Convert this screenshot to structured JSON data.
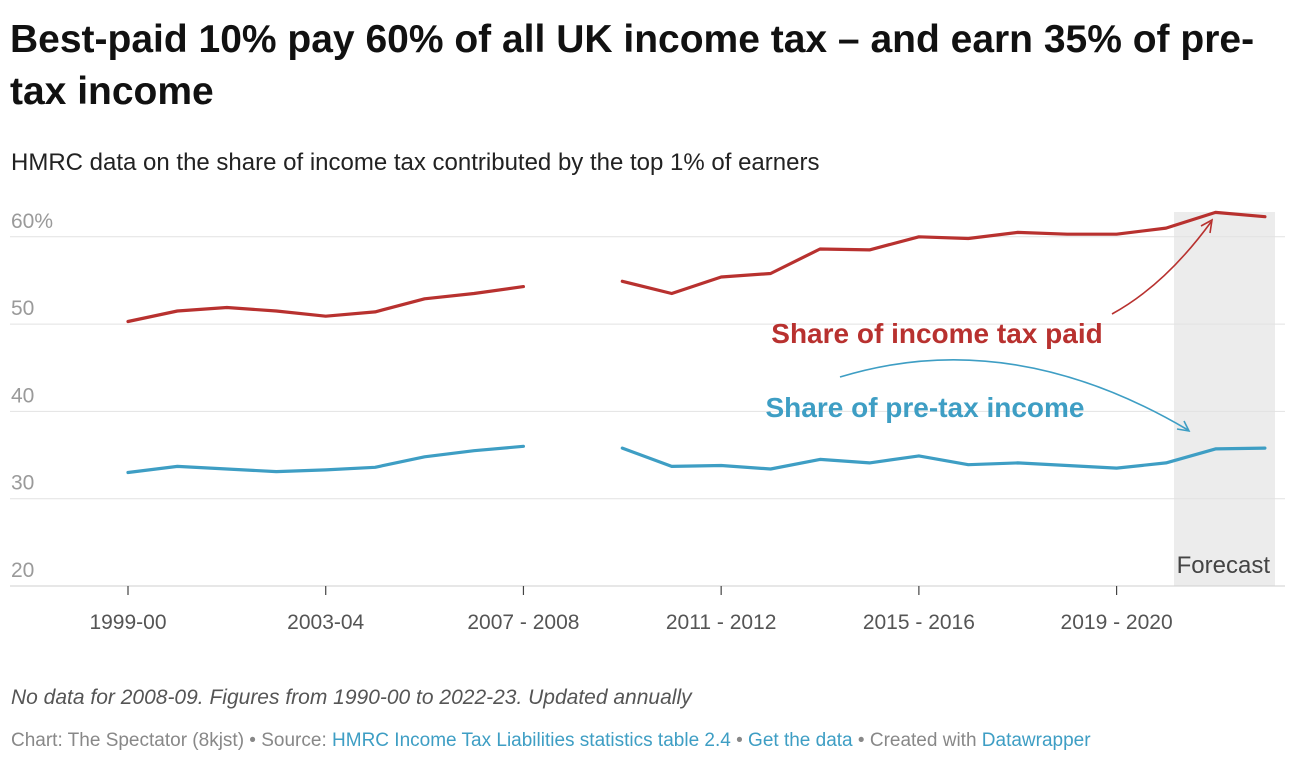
{
  "title": "Best-paid 10% pay 60% of all UK income tax – and earn 35% of pre-tax income",
  "subtitle": "HMRC data on the share of income tax contributed by the top 1% of earners",
  "chart_data": {
    "type": "line",
    "title": "Best-paid 10% pay 60% of all UK income tax – and earn 35% of pre-tax income",
    "subtitle": "HMRC data on the share of income tax contributed by the top 1% of earners",
    "xlabel": "",
    "ylabel": "",
    "ylim": [
      20,
      61
    ],
    "yticks": [
      20,
      30,
      40,
      50,
      60
    ],
    "ytick_labels": [
      "20",
      "30",
      "40",
      "50",
      "60%"
    ],
    "x": [
      "1999-00",
      "2000-01",
      "2001-02",
      "2002-03",
      "2003-04",
      "2004-05",
      "2005-06",
      "2006-07",
      "2007 - 2008",
      "2008-09",
      "2009-10",
      "2010-11",
      "2011 - 2012",
      "2012-13",
      "2013-14",
      "2014-15",
      "2015 - 2016",
      "2016-17",
      "2017-18",
      "2018-19",
      "2019 - 2020",
      "2020-21",
      "2021-22",
      "2022-23"
    ],
    "xtick_labels": [
      "1999-00",
      "2003-04",
      "2007 - 2008",
      "2011 - 2012",
      "2015 - 2016",
      "2019 - 2020"
    ],
    "xtick_indices": [
      0,
      4,
      8,
      12,
      16,
      20
    ],
    "series": [
      {
        "name": "Share of income tax paid",
        "color": "#b8312f",
        "values": [
          50.3,
          51.5,
          51.9,
          51.5,
          50.9,
          51.4,
          52.9,
          53.5,
          54.3,
          null,
          54.9,
          53.5,
          55.4,
          55.8,
          58.6,
          58.5,
          60.0,
          59.8,
          60.5,
          60.3,
          60.3,
          61.0,
          62.8,
          62.3
        ]
      },
      {
        "name": "Share of pre-tax income",
        "color": "#3e9ec4",
        "values": [
          33.0,
          33.7,
          33.4,
          33.1,
          33.3,
          33.6,
          34.8,
          35.5,
          36.0,
          null,
          35.8,
          33.7,
          33.8,
          33.4,
          34.5,
          34.1,
          34.9,
          33.9,
          34.1,
          33.8,
          33.5,
          34.1,
          35.7,
          35.8
        ]
      }
    ],
    "annotations": [
      {
        "text": "Share of income tax paid",
        "color": "#b8312f",
        "points_to": "2021-22"
      },
      {
        "text": "Share of pre-tax income",
        "color": "#3e9ec4",
        "points_to": "2021-22"
      }
    ],
    "shaded_region": {
      "label": "Forecast",
      "from": "2021-22",
      "to": "2022-23"
    },
    "grid": true
  },
  "note": "No data for 2008-09. Figures from 1990-00 to 2022-23. Updated annually",
  "footer": {
    "chart_credit": "Chart: The Spectator (8kjst)",
    "sep": " • ",
    "source_label": "Source: ",
    "source_link": "HMRC Income Tax Liabilities statistics table 2.4",
    "get_data": "Get the data",
    "created_with": "Created with ",
    "tool": "Datawrapper"
  }
}
